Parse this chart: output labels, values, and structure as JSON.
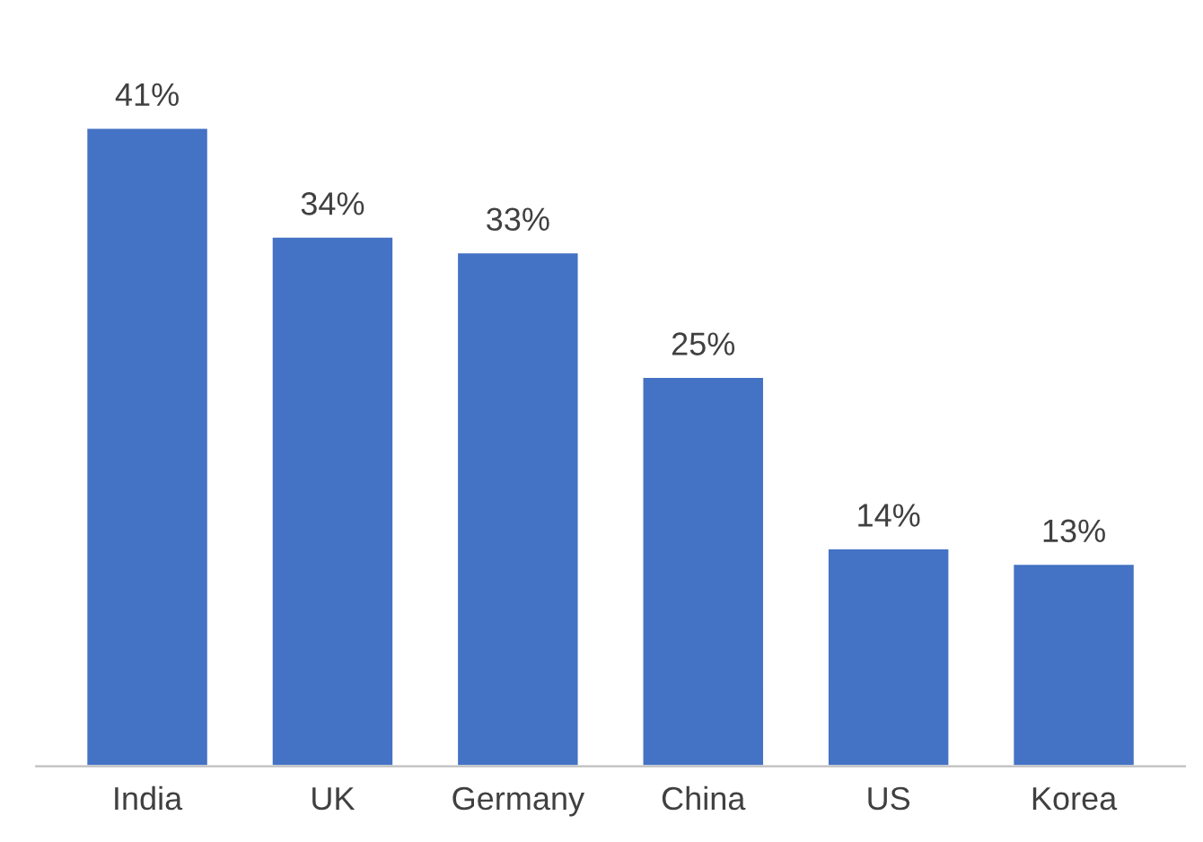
{
  "chart_data": {
    "type": "bar",
    "categories": [
      "India",
      "UK",
      "Germany",
      "China",
      "US",
      "Korea"
    ],
    "values": [
      41,
      34,
      33,
      25,
      14,
      13
    ],
    "value_labels": [
      "41%",
      "34%",
      "33%",
      "25%",
      "14%",
      "13%"
    ],
    "color": "#4472c4",
    "grid": false,
    "legend": false
  }
}
